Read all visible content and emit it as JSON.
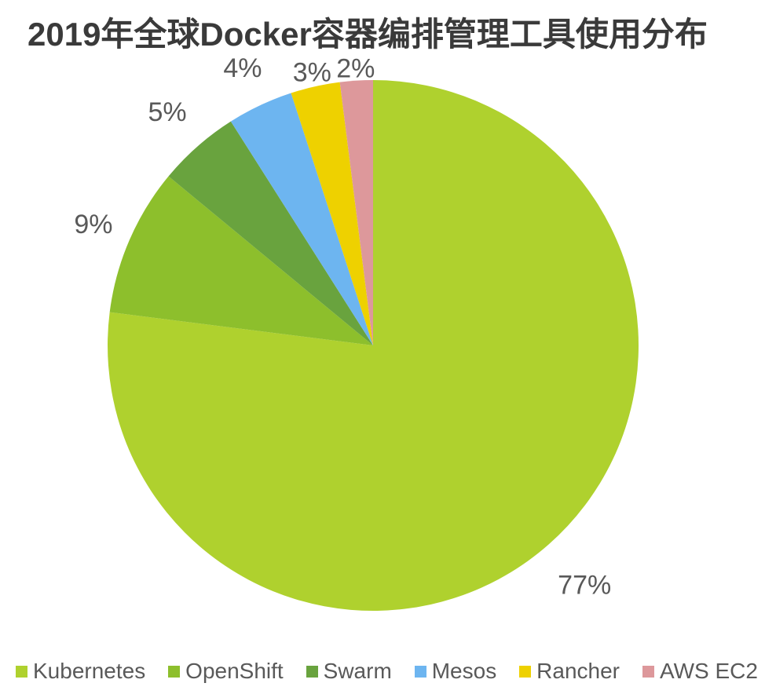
{
  "title": "2019年全球Docker容器编排管理工具使用分布",
  "chart_data": {
    "type": "pie",
    "title": "2019年全球Docker容器编排管理工具使用分布",
    "title_color": "#3a3a3a",
    "label_color": "#595959",
    "legend_text_color": "#595959",
    "legend_position": "bottom",
    "start_angle_deg": 0,
    "direction": "clockwise",
    "slices": [
      {
        "label": "Kubernetes",
        "value": 77,
        "display": "77%",
        "color": "#AFD12E"
      },
      {
        "label": "OpenShift",
        "value": 9,
        "display": "9%",
        "color": "#8DBF2C"
      },
      {
        "label": "Swarm",
        "value": 5,
        "display": "5%",
        "color": "#69A33E"
      },
      {
        "label": "Mesos",
        "value": 4,
        "display": "4%",
        "color": "#6DB5F0"
      },
      {
        "label": "Rancher",
        "value": 3,
        "display": "3%",
        "color": "#EED100"
      },
      {
        "label": "AWS EC2",
        "value": 2,
        "display": "2%",
        "color": "#DD989B"
      }
    ]
  }
}
